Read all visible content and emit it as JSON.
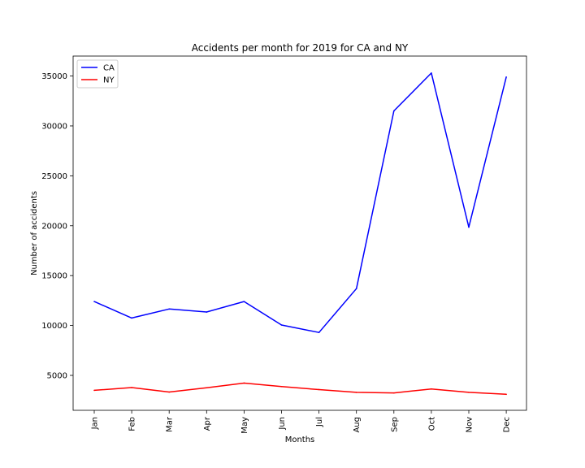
{
  "chart_data": {
    "type": "line",
    "title": "Accidents per month for 2019 for CA and NY",
    "xlabel": "Months",
    "ylabel": "Number of accidents",
    "categories": [
      "Jan",
      "Feb",
      "Mar",
      "Apr",
      "May",
      "Jun",
      "Jul",
      "Aug",
      "Sep",
      "Oct",
      "Nov",
      "Dec"
    ],
    "ylim": [
      1500,
      37000
    ],
    "yticks": [
      5000,
      10000,
      15000,
      20000,
      25000,
      30000,
      35000
    ],
    "ytick_labels": [
      "5000",
      "10000",
      "15000",
      "20000",
      "25000",
      "30000",
      "35000"
    ],
    "grid": false,
    "legend_placement": "top-left",
    "series": [
      {
        "name": "CA",
        "color": "#0000ff",
        "values": [
          12400,
          10750,
          11650,
          11350,
          12400,
          10050,
          9300,
          13700,
          31500,
          35300,
          19850,
          34900
        ]
      },
      {
        "name": "NY",
        "color": "#ff0000",
        "values": [
          3500,
          3780,
          3330,
          3760,
          4230,
          3880,
          3580,
          3300,
          3240,
          3640,
          3300,
          3100
        ]
      }
    ]
  }
}
